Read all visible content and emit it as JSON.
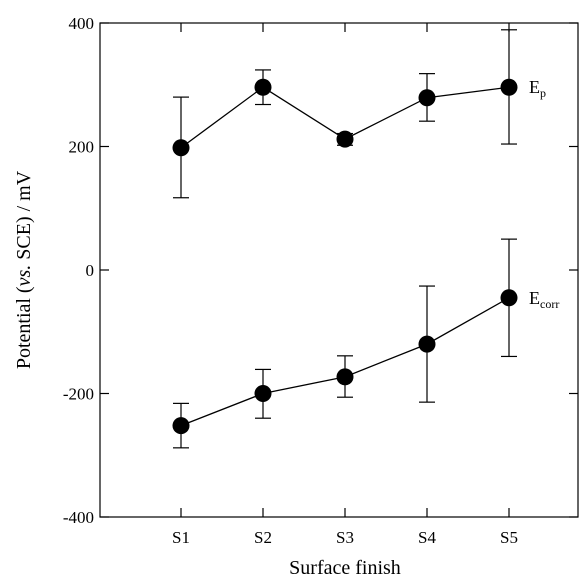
{
  "chart_data": {
    "type": "line",
    "title": "",
    "xlabel": "Surface finish",
    "ylabel": {
      "before": "Potential (",
      "italic": "vs.",
      "after": " SCE) / mV"
    },
    "categories": [
      "S1",
      "S2",
      "S3",
      "S4",
      "S5"
    ],
    "ylim": [
      -400,
      400
    ],
    "yticks": [
      -400,
      -200,
      0,
      200,
      400
    ],
    "ytick_labels": [
      "-400",
      "-200",
      "0",
      "200",
      "400"
    ],
    "grid": false,
    "legend": "none",
    "series": [
      {
        "label_main": "E",
        "label_sub": "p",
        "values": [
          198,
          296,
          212,
          279,
          296
        ],
        "err_low": [
          117,
          268,
          202,
          241,
          204
        ],
        "err_high": [
          280,
          324,
          221,
          318,
          389
        ]
      },
      {
        "label_main": "E",
        "label_sub": "corr",
        "values": [
          -252,
          -200,
          -173,
          -120,
          -45
        ],
        "err_low": [
          -288,
          -240,
          -206,
          -214,
          -140
        ],
        "err_high": [
          -216,
          -161,
          -139,
          -26,
          50
        ]
      }
    ]
  }
}
